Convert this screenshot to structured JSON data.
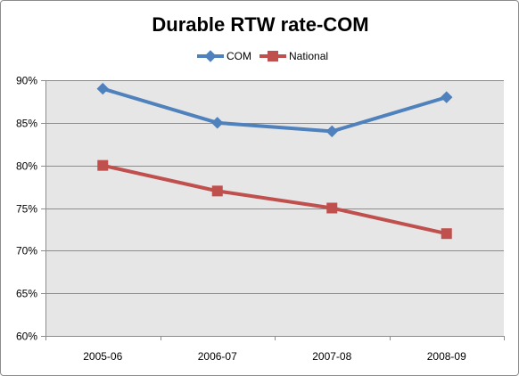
{
  "chart_data": {
    "type": "line",
    "title": "Durable RTW rate-COM",
    "categories": [
      "2005-06",
      "2006-07",
      "2007-08",
      "2008-09"
    ],
    "series": [
      {
        "name": "COM",
        "values": [
          89,
          85,
          84,
          88
        ],
        "color": "#4f81bd",
        "marker": "diamond"
      },
      {
        "name": "National",
        "values": [
          80,
          77,
          75,
          72
        ],
        "color": "#c0504d",
        "marker": "square"
      }
    ],
    "xlabel": "",
    "ylabel": "",
    "ylim": [
      60,
      90
    ],
    "y_ticks": [
      60,
      65,
      70,
      75,
      80,
      85,
      90
    ],
    "y_tick_labels": [
      "60%",
      "65%",
      "70%",
      "75%",
      "80%",
      "85%",
      "90%"
    ],
    "grid": true,
    "legend_position": "top",
    "plot_background": "#e6e6e6"
  }
}
